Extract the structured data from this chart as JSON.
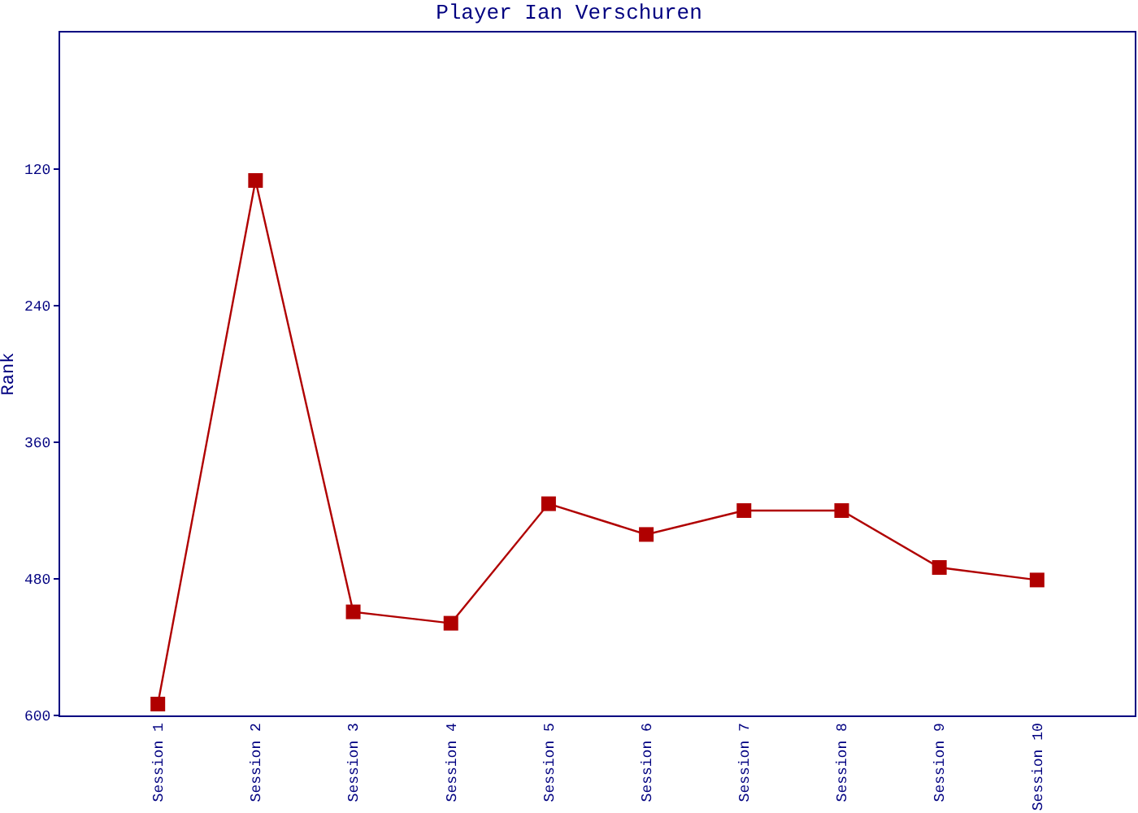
{
  "chart_data": {
    "type": "line",
    "title": "Player Ian Verschuren",
    "ylabel": "Rank",
    "categories": [
      "Session 1",
      "Session 2",
      "Session 3",
      "Session 4",
      "Session 5",
      "Session 6",
      "Session 7",
      "Session 8",
      "Session 9",
      "Session 10"
    ],
    "series": [
      {
        "color": "#b00000",
        "values": [
          590,
          130,
          509,
          519,
          414,
          441,
          420,
          420,
          470,
          481
        ]
      }
    ],
    "ylim": [
      600,
      0
    ],
    "yticks": [
      120,
      240,
      360,
      480,
      600
    ],
    "legend": false,
    "marker": "square",
    "line_style": "solid"
  }
}
